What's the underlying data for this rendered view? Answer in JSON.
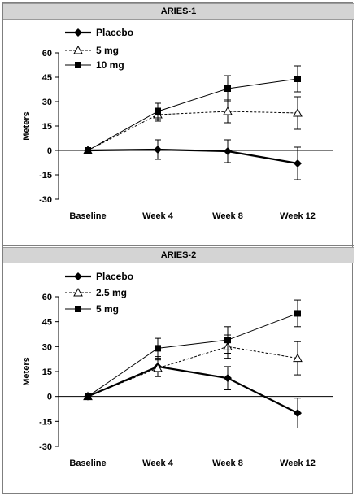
{
  "chart_data": [
    {
      "type": "line",
      "title": "ARIES-1",
      "ylabel": "Meters",
      "categories": [
        "Baseline",
        "Week 4",
        "Week 8",
        "Week 12"
      ],
      "yticks": [
        60,
        45,
        30,
        15,
        0,
        -15,
        -30
      ],
      "ylim": [
        -30,
        60
      ],
      "series": [
        {
          "name": "Placebo",
          "values": [
            0,
            0.5,
            -0.5,
            -8
          ],
          "err": [
            0,
            6,
            7,
            10
          ],
          "marker": "diamond",
          "line": "solid-thick",
          "color": "#000000"
        },
        {
          "name": "5 mg",
          "values": [
            0,
            22,
            24,
            23
          ],
          "err": [
            0,
            4,
            7,
            10
          ],
          "marker": "triangle-open",
          "line": "dotted",
          "color": "#000000"
        },
        {
          "name": "10 mg",
          "values": [
            0,
            24,
            38,
            44
          ],
          "err": [
            0,
            5,
            8,
            8
          ],
          "marker": "square",
          "line": "solid",
          "color": "#000000"
        }
      ]
    },
    {
      "type": "line",
      "title": "ARIES-2",
      "ylabel": "Meters",
      "categories": [
        "Baseline",
        "Week 4",
        "Week 8",
        "Week 12"
      ],
      "yticks": [
        60,
        45,
        30,
        15,
        0,
        -15,
        -30
      ],
      "ylim": [
        -30,
        60
      ],
      "series": [
        {
          "name": "Placebo",
          "values": [
            0,
            18,
            11,
            -10
          ],
          "err": [
            0,
            6,
            7,
            9
          ],
          "marker": "diamond",
          "line": "solid-thick",
          "color": "#000000"
        },
        {
          "name": "2.5 mg",
          "values": [
            0,
            17,
            30,
            23
          ],
          "err": [
            0,
            5,
            7,
            10
          ],
          "marker": "triangle-open",
          "line": "dotted",
          "color": "#000000"
        },
        {
          "name": "5 mg",
          "values": [
            0,
            29,
            34,
            50
          ],
          "err": [
            0,
            6,
            8,
            8
          ],
          "marker": "square",
          "line": "solid",
          "color": "#000000"
        }
      ]
    }
  ]
}
